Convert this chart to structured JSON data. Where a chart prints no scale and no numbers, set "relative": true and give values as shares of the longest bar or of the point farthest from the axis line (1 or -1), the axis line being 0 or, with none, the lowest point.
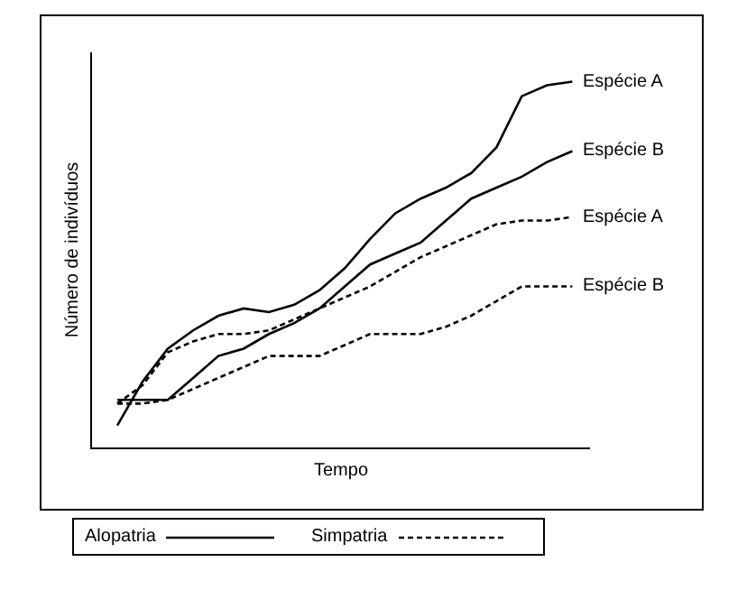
{
  "chart_data": {
    "type": "line",
    "relative": true,
    "xlabel": "Tempo",
    "ylabel": "Número de indivíduos",
    "categories": [
      null,
      null,
      null,
      null,
      null,
      null,
      null,
      null,
      null,
      null,
      null,
      null,
      null,
      null,
      null,
      null,
      null,
      null,
      null
    ],
    "series": [
      {
        "name": "Espécie A",
        "color": "#000000",
        "line_style": "solid",
        "values": [
          0.06,
          0.18,
          0.27,
          0.32,
          0.36,
          0.38,
          0.37,
          0.39,
          0.43,
          0.49,
          0.57,
          0.64,
          0.68,
          0.71,
          0.75,
          0.82,
          0.96,
          0.99,
          1.0
        ]
      },
      {
        "name": "Espécie B",
        "color": "#000000",
        "line_style": "solid",
        "values": [
          0.13,
          0.13,
          0.13,
          0.19,
          0.25,
          0.27,
          0.31,
          0.34,
          0.38,
          0.44,
          0.5,
          0.53,
          0.56,
          0.62,
          0.68,
          0.71,
          0.74,
          0.78,
          0.81
        ]
      },
      {
        "name": "Espécie A",
        "color": "#000000",
        "line_style": "dashed",
        "values": [
          0.12,
          0.17,
          0.26,
          0.29,
          0.31,
          0.31,
          0.32,
          0.35,
          0.38,
          0.41,
          0.44,
          0.48,
          0.52,
          0.55,
          0.58,
          0.61,
          0.62,
          0.62,
          0.63
        ]
      },
      {
        "name": "Espécie B",
        "color": "#000000",
        "line_style": "dashed",
        "values": [
          0.12,
          0.12,
          0.13,
          0.16,
          0.19,
          0.22,
          0.25,
          0.25,
          0.25,
          0.28,
          0.31,
          0.31,
          0.31,
          0.33,
          0.36,
          0.4,
          0.44,
          0.44,
          0.44
        ]
      }
    ],
    "annotations": [
      "Alopatria",
      "Simpatria"
    ],
    "marker": "none",
    "legend": false
  }
}
